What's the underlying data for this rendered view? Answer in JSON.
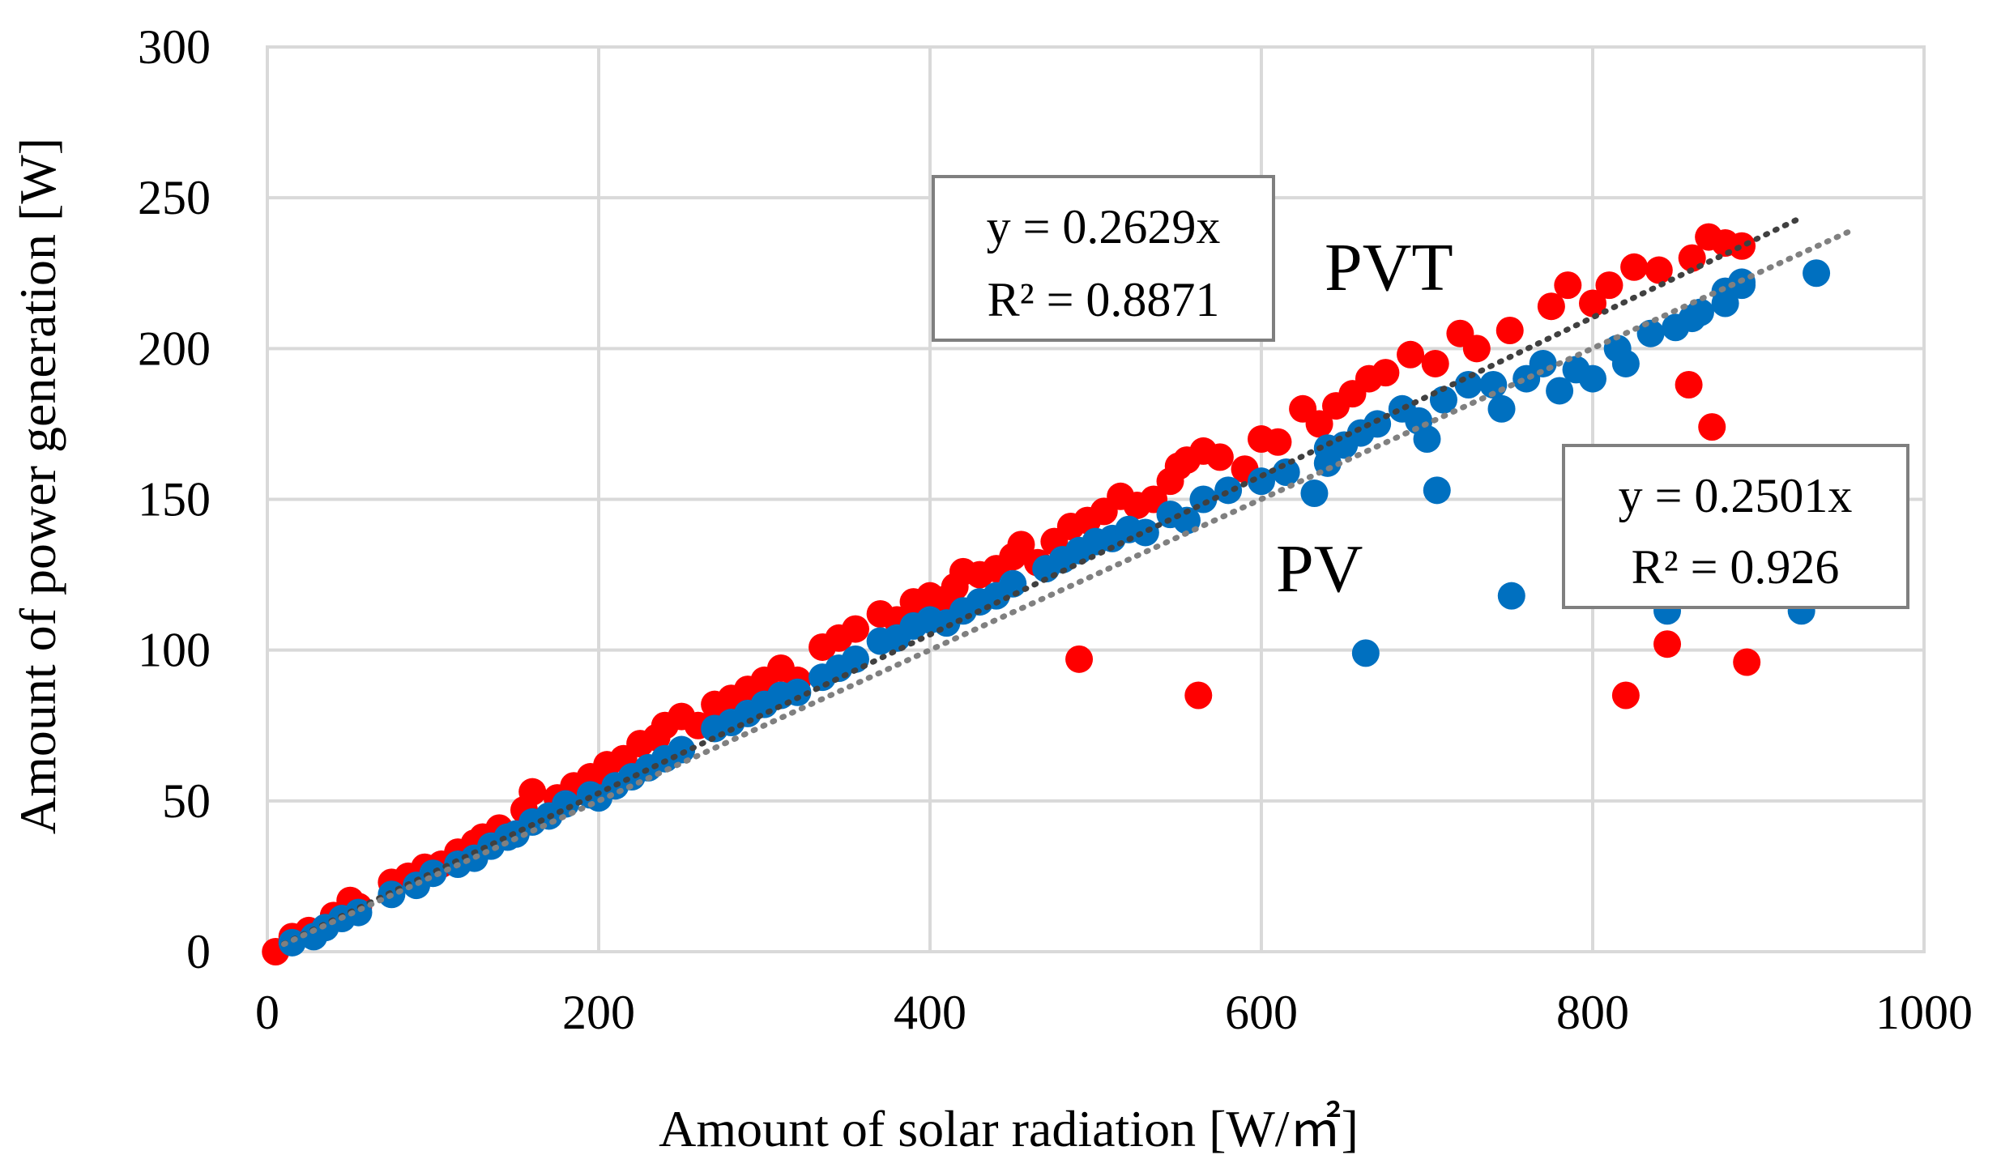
{
  "chart_data": {
    "type": "scatter",
    "title": "",
    "xlabel": "Amount of solar radiation [W/㎡]",
    "ylabel": "Amount of power generation [W]",
    "xlim": [
      0,
      1000
    ],
    "ylim": [
      0,
      300
    ],
    "xticks": [
      "0",
      "200",
      "400",
      "600",
      "800",
      "1000"
    ],
    "yticks": [
      "0",
      "50",
      "100",
      "150",
      "200",
      "250",
      "300"
    ],
    "grid": true,
    "series": [
      {
        "name": "PVT",
        "color": "#FF0000",
        "label": "PVT",
        "trendline": {
          "slope": 0.2629,
          "equation": "y = 0.2629x",
          "r2": "R² = 0.8871",
          "color": "#404040",
          "x_end": 925
        },
        "points": [
          [
            5,
            0
          ],
          [
            15,
            5
          ],
          [
            25,
            7
          ],
          [
            40,
            12
          ],
          [
            50,
            17
          ],
          [
            55,
            15
          ],
          [
            75,
            23
          ],
          [
            85,
            25
          ],
          [
            95,
            28
          ],
          [
            105,
            29
          ],
          [
            115,
            33
          ],
          [
            125,
            36
          ],
          [
            130,
            38
          ],
          [
            140,
            41
          ],
          [
            155,
            47
          ],
          [
            160,
            53
          ],
          [
            175,
            51
          ],
          [
            185,
            55
          ],
          [
            195,
            58
          ],
          [
            205,
            62
          ],
          [
            215,
            64
          ],
          [
            225,
            69
          ],
          [
            235,
            71
          ],
          [
            240,
            75
          ],
          [
            250,
            78
          ],
          [
            260,
            75
          ],
          [
            270,
            82
          ],
          [
            280,
            84
          ],
          [
            290,
            87
          ],
          [
            300,
            90
          ],
          [
            310,
            94
          ],
          [
            320,
            90
          ],
          [
            335,
            101
          ],
          [
            345,
            104
          ],
          [
            355,
            107
          ],
          [
            370,
            112
          ],
          [
            380,
            110
          ],
          [
            390,
            116
          ],
          [
            400,
            118
          ],
          [
            410,
            117
          ],
          [
            415,
            121
          ],
          [
            420,
            126
          ],
          [
            430,
            125
          ],
          [
            440,
            127
          ],
          [
            450,
            131
          ],
          [
            455,
            135
          ],
          [
            465,
            129
          ],
          [
            475,
            136
          ],
          [
            485,
            141
          ],
          [
            495,
            143
          ],
          [
            505,
            146
          ],
          [
            515,
            151
          ],
          [
            525,
            148
          ],
          [
            535,
            150
          ],
          [
            545,
            156
          ],
          [
            550,
            161
          ],
          [
            555,
            163
          ],
          [
            565,
            166
          ],
          [
            575,
            164
          ],
          [
            590,
            160
          ],
          [
            600,
            170
          ],
          [
            610,
            169
          ],
          [
            625,
            180
          ],
          [
            635,
            175
          ],
          [
            645,
            181
          ],
          [
            655,
            185
          ],
          [
            665,
            190
          ],
          [
            675,
            192
          ],
          [
            690,
            198
          ],
          [
            705,
            195
          ],
          [
            720,
            205
          ],
          [
            730,
            200
          ],
          [
            750,
            206
          ],
          [
            775,
            214
          ],
          [
            785,
            221
          ],
          [
            800,
            215
          ],
          [
            810,
            221
          ],
          [
            825,
            227
          ],
          [
            840,
            226
          ],
          [
            860,
            230
          ],
          [
            870,
            237
          ],
          [
            880,
            235
          ],
          [
            890,
            234
          ],
          [
            490,
            97
          ],
          [
            562,
            85
          ],
          [
            820,
            85
          ],
          [
            845,
            102
          ],
          [
            858,
            188
          ],
          [
            872,
            174
          ],
          [
            893,
            96
          ]
        ]
      },
      {
        "name": "PV",
        "color": "#0070C0",
        "label": "PV",
        "trendline": {
          "slope": 0.2501,
          "equation": "y = 0.2501x",
          "r2": "R² = 0.926",
          "color": "#808080",
          "x_end": 955
        },
        "points": [
          [
            15,
            3
          ],
          [
            28,
            5
          ],
          [
            35,
            8
          ],
          [
            45,
            11
          ],
          [
            55,
            13
          ],
          [
            75,
            19
          ],
          [
            90,
            22
          ],
          [
            100,
            26
          ],
          [
            115,
            29
          ],
          [
            125,
            31
          ],
          [
            135,
            35
          ],
          [
            145,
            38
          ],
          [
            150,
            39
          ],
          [
            160,
            43
          ],
          [
            170,
            45
          ],
          [
            180,
            49
          ],
          [
            195,
            52
          ],
          [
            200,
            51
          ],
          [
            210,
            55
          ],
          [
            220,
            58
          ],
          [
            230,
            61
          ],
          [
            240,
            64
          ],
          [
            250,
            67
          ],
          [
            270,
            74
          ],
          [
            280,
            76
          ],
          [
            290,
            79
          ],
          [
            300,
            82
          ],
          [
            310,
            85
          ],
          [
            320,
            86
          ],
          [
            335,
            91
          ],
          [
            345,
            94
          ],
          [
            355,
            97
          ],
          [
            370,
            103
          ],
          [
            380,
            104
          ],
          [
            390,
            108
          ],
          [
            400,
            110
          ],
          [
            410,
            109
          ],
          [
            420,
            113
          ],
          [
            430,
            116
          ],
          [
            440,
            118
          ],
          [
            450,
            122
          ],
          [
            470,
            127
          ],
          [
            480,
            130
          ],
          [
            490,
            133
          ],
          [
            500,
            136
          ],
          [
            510,
            137
          ],
          [
            520,
            140
          ],
          [
            530,
            139
          ],
          [
            545,
            145
          ],
          [
            555,
            143
          ],
          [
            565,
            150
          ],
          [
            580,
            153
          ],
          [
            600,
            156
          ],
          [
            615,
            159
          ],
          [
            632,
            152
          ],
          [
            640,
            162
          ],
          [
            650,
            168
          ],
          [
            660,
            172
          ],
          [
            670,
            175
          ],
          [
            685,
            180
          ],
          [
            695,
            176
          ],
          [
            710,
            183
          ],
          [
            725,
            188
          ],
          [
            740,
            188
          ],
          [
            745,
            180
          ],
          [
            760,
            190
          ],
          [
            780,
            186
          ],
          [
            790,
            193
          ],
          [
            815,
            200
          ],
          [
            835,
            205
          ],
          [
            850,
            207
          ],
          [
            865,
            212
          ],
          [
            880,
            219
          ],
          [
            890,
            221
          ],
          [
            935,
            225
          ],
          [
            663,
            99
          ],
          [
            706,
            153
          ],
          [
            751,
            118
          ],
          [
            820,
            195
          ],
          [
            845,
            113
          ],
          [
            926,
            113
          ],
          [
            640,
            167
          ],
          [
            700,
            170
          ],
          [
            770,
            195
          ],
          [
            800,
            190
          ],
          [
            860,
            210
          ],
          [
            880,
            215
          ],
          [
            890,
            222
          ]
        ]
      }
    ]
  }
}
